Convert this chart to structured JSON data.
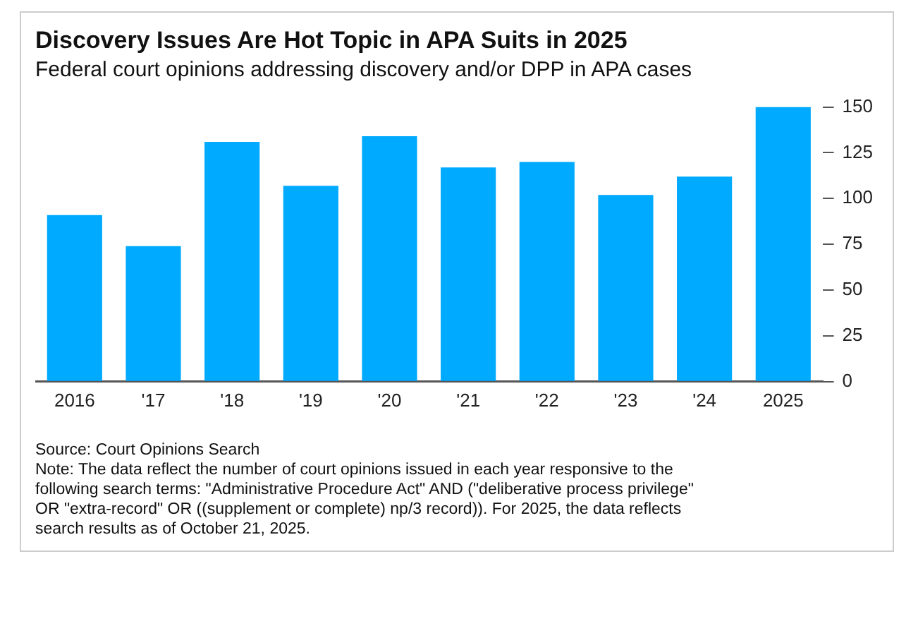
{
  "chart_data": {
    "type": "bar",
    "title": "Discovery Issues Are Hot Topic in APA Suits in 2025",
    "subtitle": "Federal court opinions addressing discovery and/or DPP in APA cases",
    "categories": [
      "2016",
      "'17",
      "'18",
      "'19",
      "'20",
      "'21",
      "'22",
      "'23",
      "'24",
      "2025"
    ],
    "values": [
      91,
      74,
      131,
      107,
      134,
      117,
      120,
      102,
      112,
      150
    ],
    "color": "#00aaff",
    "ylim": [
      0,
      150
    ],
    "yticks": [
      0,
      25,
      50,
      75,
      100,
      125,
      150
    ],
    "grid": false,
    "legend": false,
    "annotations": [
      "Source: Court Opinions Search",
      "Note: The data reflect the number of court opinions issued in each year responsive to the following search terms: \"Administrative Procedure Act\" AND (\"deliberative process privilege\" OR \"extra-record\" OR ((supplement or complete) np/3 record)). For 2025, the data reflects search results as of October 21, 2025."
    ]
  }
}
